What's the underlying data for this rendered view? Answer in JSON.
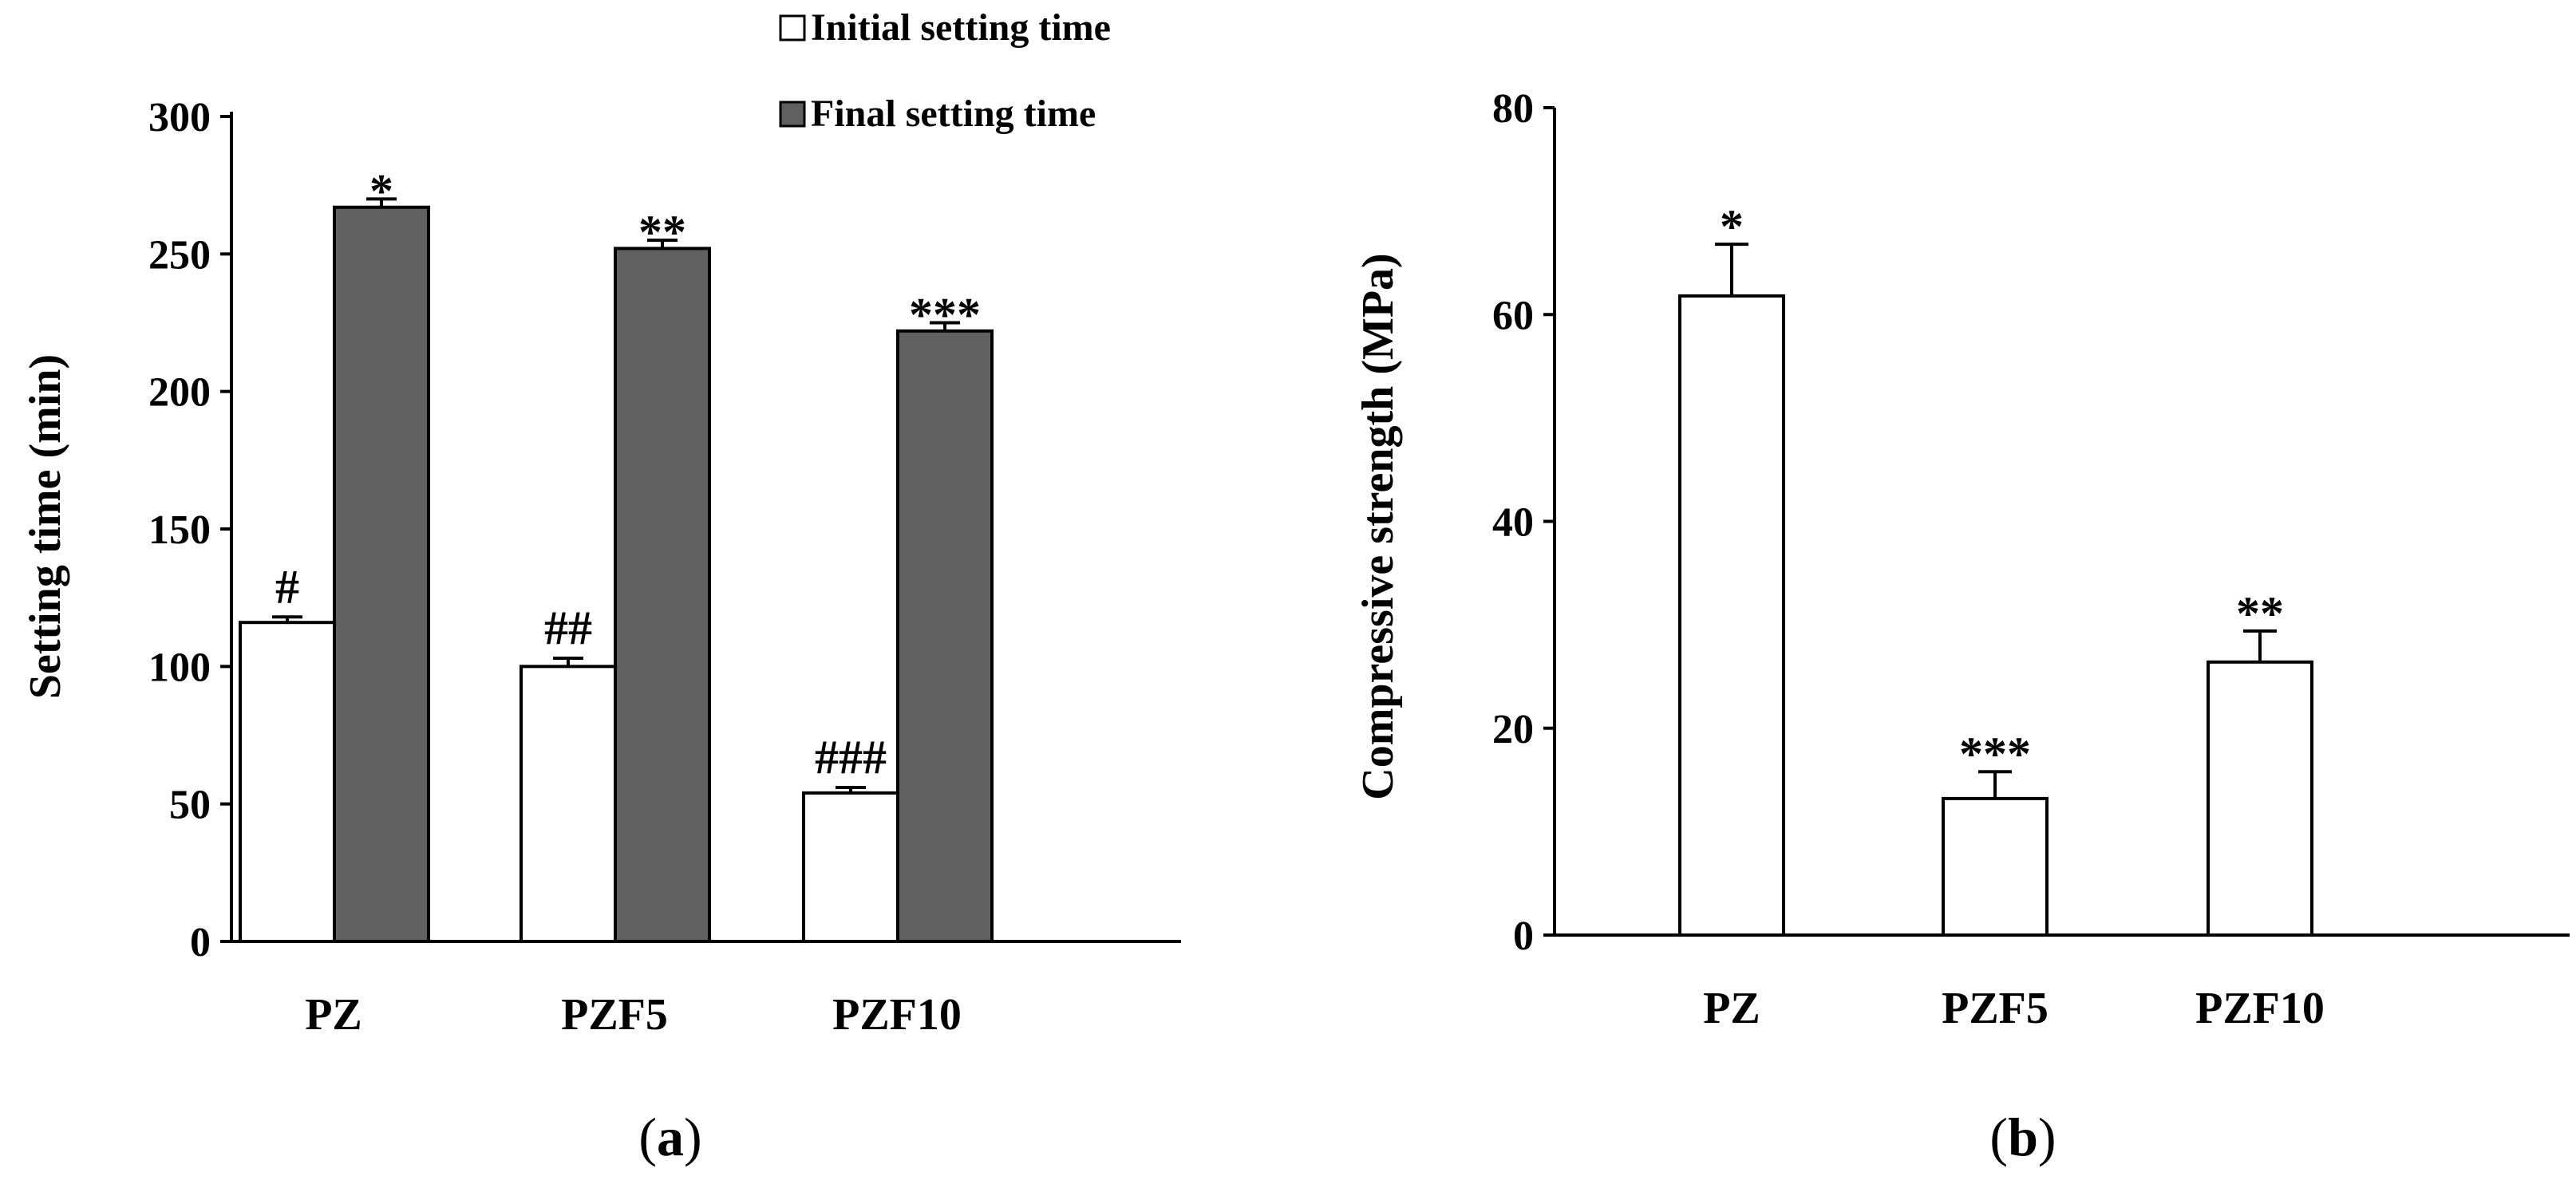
{
  "chart_data": [
    {
      "type": "bar",
      "panel_label": "a",
      "title": "",
      "xlabel": "",
      "ylabel": "Setting time (min)",
      "ylim": [
        0,
        300
      ],
      "yticks": [
        0,
        50,
        100,
        150,
        200,
        250,
        300
      ],
      "categories": [
        "PZ",
        "PZF5",
        "PZF10"
      ],
      "series": [
        {
          "name": "Initial setting time",
          "color": "#ffffff",
          "values": [
            116,
            100,
            54
          ],
          "errors": [
            2,
            3,
            2
          ],
          "labels": [
            "#",
            "##",
            "###"
          ]
        },
        {
          "name": "Final setting time",
          "color": "#606060",
          "values": [
            267,
            252,
            222
          ],
          "errors": [
            3,
            3,
            3
          ],
          "labels": [
            "*",
            "**",
            "***"
          ]
        }
      ],
      "legend": "top-right"
    },
    {
      "type": "bar",
      "panel_label": "b",
      "title": "",
      "xlabel": "",
      "ylabel": "Compressive strength (MPa)",
      "ylim": [
        0,
        80
      ],
      "yticks": [
        0,
        20,
        40,
        60,
        80
      ],
      "categories": [
        "PZ",
        "PZF5",
        "PZF10"
      ],
      "series": [
        {
          "name": "Compressive strength",
          "color": "#ffffff",
          "values": [
            61.8,
            13.2,
            26.4
          ],
          "errors": [
            5.0,
            2.6,
            3.0
          ],
          "labels": [
            "*",
            "***",
            "**"
          ]
        }
      ]
    }
  ]
}
